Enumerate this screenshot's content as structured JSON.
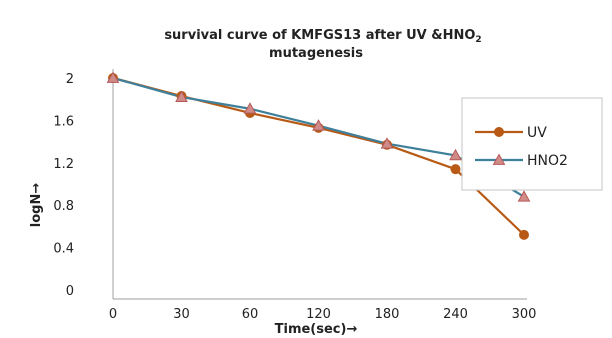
{
  "chart_data": {
    "type": "line",
    "title_line1": "survival curve of KMFGS13 after UV &HNO",
    "title_sub": "2",
    "title_line2": "mutagenesis",
    "xlabel": "Time(sec)→",
    "ylabel": "logN→",
    "categories": [
      "0",
      "30",
      "60",
      "120",
      "180",
      "240",
      "300"
    ],
    "y_ticks": [
      "0",
      "0.4",
      "0.8",
      "1.2",
      "1.6",
      "2"
    ],
    "ylim": [
      0,
      2
    ],
    "grid": false,
    "legend_position": "right",
    "series": [
      {
        "name": "UV",
        "values": [
          2.0,
          1.83,
          1.67,
          1.53,
          1.37,
          1.14,
          0.52
        ],
        "color": "#b85a16",
        "marker": "circle"
      },
      {
        "name": "HNO2",
        "values": [
          2.0,
          1.82,
          1.71,
          1.55,
          1.38,
          1.27,
          0.88
        ],
        "color": "#3e7f9a",
        "marker": "triangle"
      }
    ]
  }
}
